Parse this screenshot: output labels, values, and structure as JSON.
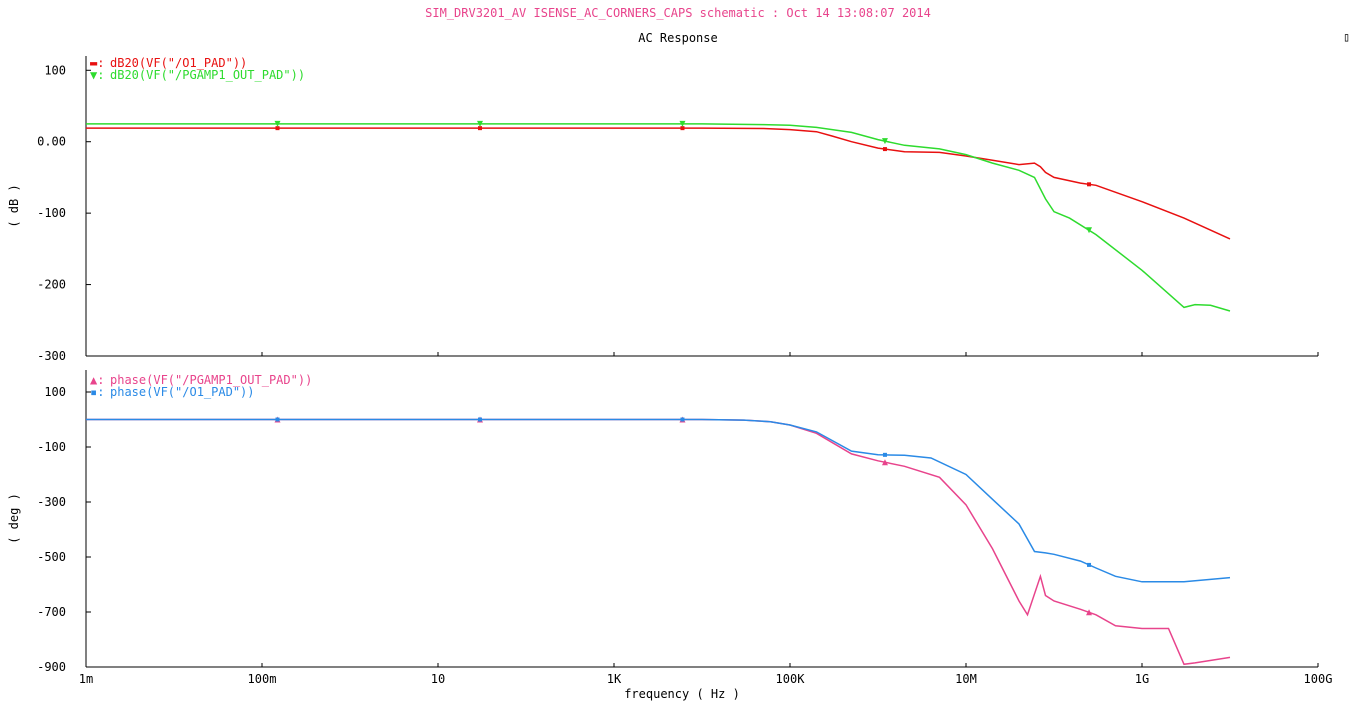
{
  "window": {
    "header": "SIM_DRV3201_AV ISENSE_AC_CORNERS_CAPS schematic : Oct 14 13:08:07 2014",
    "header_color": "#e8448c",
    "title": "AC Response",
    "corner_glyph": "▯"
  },
  "chart_data": [
    {
      "type": "line",
      "title": "AC Response",
      "xlabel": "frequency ( Hz )",
      "ylabel": "( dB )",
      "xscale": "log",
      "xlim": [
        0.001,
        100000000000
      ],
      "ylim": [
        -300,
        120
      ],
      "x_ticks": [
        0.001,
        0.1,
        10,
        1000,
        100000,
        10000000,
        1000000000,
        100000000000
      ],
      "x_tick_labels": [
        "1m",
        "100m",
        "10",
        "1K",
        "100K",
        "10M",
        "1G",
        "100G"
      ],
      "y_ticks": [
        100,
        0,
        -100,
        -200,
        -300
      ],
      "y_tick_labels": [
        "100",
        "0.00",
        "-100",
        "-200",
        "-300"
      ],
      "grid": false,
      "legend": "top-left",
      "series": [
        {
          "name": "dB20(VF(\"/O1_PAD\"))",
          "marker_glyph": "▬",
          "marker": "square",
          "color": "#e81010",
          "x": [
            0.001,
            10000,
            50000,
            100000,
            200000,
            300000,
            500000,
            1000000,
            2000000,
            5000000,
            10000000,
            20000000,
            40000000,
            60000000,
            70000000,
            80000000,
            100000000,
            200000000,
            300000000,
            1000000000,
            3000000000,
            10000000000
          ],
          "y": [
            19,
            19,
            18.5,
            17,
            14,
            8,
            0,
            -9,
            -14,
            -15,
            -20,
            -26,
            -32,
            -30,
            -35,
            -43,
            -50,
            -58,
            -61,
            -84,
            -107,
            -136
          ],
          "marker_x": [
            0.15,
            30,
            6000,
            1200000,
            250000000
          ]
        },
        {
          "name": "dB20(VF(\"/PGAMP1_OUT_PAD\"))",
          "marker_glyph": "▼",
          "marker": "triangle-down",
          "color": "#2edb2e",
          "x": [
            0.001,
            10000,
            50000,
            100000,
            200000,
            500000,
            1000000,
            2000000,
            5000000,
            10000000,
            20000000,
            40000000,
            60000000,
            80000000,
            100000000,
            150000000,
            300000000,
            1000000000,
            3000000000,
            4000000000,
            6000000000,
            10000000000
          ],
          "y": [
            25,
            25,
            24,
            23,
            20,
            13,
            3,
            -5,
            -10,
            -18,
            -30,
            -40,
            -50,
            -80,
            -98,
            -107,
            -130,
            -180,
            -232,
            -228,
            -229,
            -237
          ],
          "marker_x": [
            0.15,
            30,
            6000,
            1200000,
            250000000
          ]
        }
      ]
    },
    {
      "type": "line",
      "xlabel": "frequency ( Hz )",
      "ylabel": "( deg )",
      "xscale": "log",
      "xlim": [
        0.001,
        100000000000
      ],
      "ylim": [
        -900,
        180
      ],
      "x_ticks": [
        0.001,
        0.1,
        10,
        1000,
        100000,
        10000000,
        1000000000,
        100000000000
      ],
      "x_tick_labels": [
        "1m",
        "100m",
        "10",
        "1K",
        "100K",
        "10M",
        "1G",
        "100G"
      ],
      "y_ticks": [
        100,
        -100,
        -300,
        -500,
        -700,
        -900
      ],
      "y_tick_labels": [
        "100",
        "-100",
        "-300",
        "-500",
        "-700",
        "-900"
      ],
      "grid": false,
      "legend": "top-left",
      "series": [
        {
          "name": "phase(VF(\"/PGAMP1_OUT_PAD\"))",
          "marker_glyph": "▲",
          "marker": "triangle-up",
          "color": "#e8448c",
          "x": [
            0.001,
            10000,
            30000,
            60000,
            100000,
            200000,
            500000,
            1000000,
            2000000,
            5000000,
            10000000,
            20000000,
            40000000,
            50000000,
            70000000,
            80000000,
            100000000,
            200000000,
            300000000,
            500000000,
            1000000000,
            2000000000,
            3000000000,
            4000000000,
            10000000000
          ],
          "y": [
            0,
            0,
            -2,
            -8,
            -20,
            -50,
            -125,
            -150,
            -170,
            -210,
            -310,
            -470,
            -660,
            -710,
            -570,
            -640,
            -660,
            -690,
            -710,
            -750,
            -760,
            -760,
            -890,
            -885,
            -865
          ],
          "marker_x": [
            0.15,
            30,
            6000,
            1200000,
            250000000
          ]
        },
        {
          "name": "phase(VF(\"/O1_PAD\"))",
          "marker_glyph": "▪",
          "marker": "square",
          "color": "#2a8ae6",
          "x": [
            0.001,
            10000,
            30000,
            60000,
            100000,
            200000,
            500000,
            1000000,
            2000000,
            4000000,
            10000000,
            20000000,
            40000000,
            60000000,
            80000000,
            100000000,
            200000000,
            300000000,
            500000000,
            1000000000,
            3000000000,
            10000000000
          ],
          "y": [
            0,
            0,
            -2,
            -8,
            -20,
            -45,
            -115,
            -128,
            -130,
            -140,
            -200,
            -290,
            -380,
            -480,
            -485,
            -490,
            -515,
            -540,
            -570,
            -590,
            -590,
            -575
          ],
          "marker_x": [
            0.15,
            30,
            6000,
            1200000,
            250000000
          ]
        }
      ]
    }
  ]
}
